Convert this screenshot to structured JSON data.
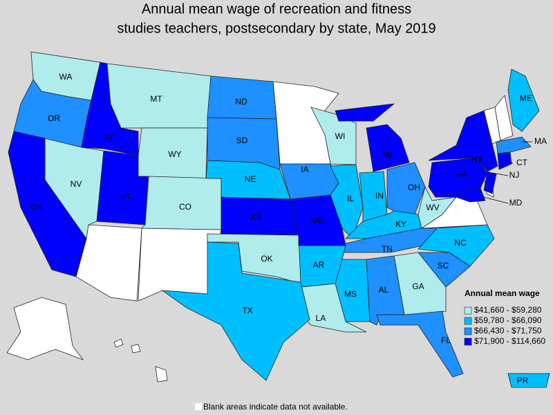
{
  "title": [
    "Annual mean wage of recreation and fitness",
    "studies teachers, postsecondary by state, May 2019"
  ],
  "states": [
    {
      "label": "WA",
      "color": "#b0ecec"
    },
    {
      "label": "OR",
      "color": "#1e90ff"
    },
    {
      "label": "ID",
      "color": "#0000ff"
    },
    {
      "label": "MT",
      "color": "#b0ecec"
    },
    {
      "label": "ND",
      "color": "#1e90ff"
    },
    {
      "label": "WY",
      "color": "#b0ecec"
    },
    {
      "label": "SD",
      "color": "#1e90ff"
    },
    {
      "label": "NV",
      "color": "#b0ecec"
    },
    {
      "label": "UT",
      "color": "#0000ff"
    },
    {
      "label": "CO",
      "color": "#b0ecec"
    },
    {
      "label": "NE",
      "color": "#00bfff"
    },
    {
      "label": "KS",
      "color": "#0000ff"
    },
    {
      "label": "CA",
      "color": "#0000ff"
    },
    {
      "label": "WI",
      "color": "#b0ecec"
    },
    {
      "label": "IA",
      "color": "#1e90ff"
    },
    {
      "label": "IL",
      "color": "#00bfff"
    },
    {
      "label": "MI",
      "color": "#0000ff"
    },
    {
      "label": "IN",
      "color": "#00bfff"
    },
    {
      "label": "OH",
      "color": "#1e90ff"
    },
    {
      "label": "KY",
      "color": "#00bfff"
    },
    {
      "label": "WV",
      "color": "#b0ecec"
    },
    {
      "label": "TN",
      "color": "#1e90ff"
    },
    {
      "label": "NC",
      "color": "#00bfff"
    },
    {
      "label": "SC",
      "color": "#1e90ff"
    },
    {
      "label": "GA",
      "color": "#b0ecec"
    },
    {
      "label": "AL",
      "color": "#1e90ff"
    },
    {
      "label": "MS",
      "color": "#00bfff"
    },
    {
      "label": "LA",
      "color": "#b0ecec"
    },
    {
      "label": "AR",
      "color": "#00bfff"
    },
    {
      "label": "OK",
      "color": "#b0ecec"
    },
    {
      "label": "TX",
      "color": "#00bfff"
    },
    {
      "label": "FL",
      "color": "#1e90ff"
    },
    {
      "label": "MO",
      "color": "#0000ff"
    },
    {
      "label": "NY",
      "color": "#0000ff"
    },
    {
      "label": "PA",
      "color": "#0000ff"
    },
    {
      "label": "ME",
      "color": "#00bfff"
    },
    {
      "label": "MA",
      "color": "#1e90ff"
    },
    {
      "label": "CT",
      "color": "#0000ff"
    },
    {
      "label": "NJ",
      "color": "#0000ff"
    },
    {
      "label": "MD",
      "color": "#0000ff"
    },
    {
      "label": "PR",
      "color": "#00bfff"
    }
  ],
  "legend": {
    "title": "Annual mean wage",
    "items": [
      {
        "label": "$41,660 - $59,280",
        "color": "#b0ecec"
      },
      {
        "label": "$59,780 - $66,090",
        "color": "#00bfff"
      },
      {
        "label": "$66,430 - $71,750",
        "color": "#1e90ff"
      },
      {
        "label": "$71,900 - $114,660",
        "color": "#0000ff"
      }
    ]
  },
  "footnote": "Blank areas indicate data not available."
}
